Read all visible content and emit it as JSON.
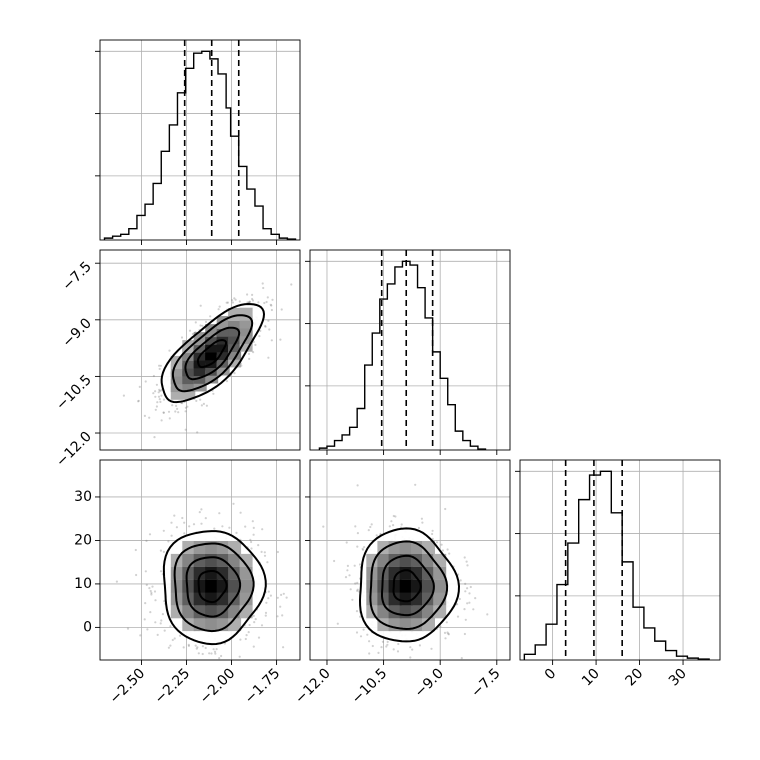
{
  "chart_data": {
    "type": "corner",
    "title": "",
    "parameters": [
      {
        "name": "",
        "ticks": [
          -2.5,
          -2.25,
          -2.0,
          -1.75
        ],
        "tick_labels": [
          "−2.50",
          "−2.25",
          "−2.00",
          "−1.75"
        ],
        "range": [
          -2.73,
          -1.62
        ],
        "quantiles": [
          -2.26,
          -2.11,
          -1.96
        ],
        "mean": -2.11,
        "std": 0.14
      },
      {
        "name": "",
        "ticks": [
          -12.0,
          -10.5,
          -9.0,
          -7.5
        ],
        "tick_labels": [
          "−12.0",
          "−10.5",
          "−9.0",
          "−7.5"
        ],
        "range": [
          -12.45,
          -7.15
        ],
        "quantiles": [
          -10.55,
          -9.9,
          -9.2
        ],
        "mean": -9.9,
        "std": 0.65
      },
      {
        "name": "",
        "ticks": [
          0,
          10,
          20,
          30
        ],
        "tick_labels": [
          "0",
          "10",
          "20",
          "30"
        ],
        "range": [
          -7.5,
          38.5
        ],
        "quantiles": [
          3.0,
          9.5,
          16.0
        ],
        "mean": 9.5,
        "std": 6.5
      }
    ],
    "histograms": [
      {
        "param": 0,
        "bin_edges": [
          -2.705,
          -2.66,
          -2.615,
          -2.57,
          -2.525,
          -2.48,
          -2.435,
          -2.39,
          -2.345,
          -2.3,
          -2.255,
          -2.21,
          -2.165,
          -2.12,
          -2.075,
          -2.03,
          -2.005,
          -1.96,
          -1.915,
          -1.87,
          -1.825,
          -1.78,
          -1.735,
          -1.69,
          -1.645
        ],
        "counts": [
          0.01,
          0.02,
          0.03,
          0.06,
          0.13,
          0.19,
          0.3,
          0.47,
          0.61,
          0.78,
          0.91,
          0.99,
          1.0,
          0.96,
          0.88,
          0.7,
          0.55,
          0.39,
          0.27,
          0.18,
          0.06,
          0.03,
          0.01,
          0.005
        ]
      },
      {
        "param": 1,
        "bin_edges": [
          -12.2,
          -12.0,
          -11.8,
          -11.6,
          -11.4,
          -11.2,
          -11.0,
          -10.8,
          -10.6,
          -10.4,
          -10.2,
          -10.0,
          -9.8,
          -9.6,
          -9.4,
          -9.2,
          -9.0,
          -8.8,
          -8.6,
          -8.4,
          -8.2,
          -8.0,
          -7.8
        ],
        "counts": [
          0.01,
          0.02,
          0.05,
          0.08,
          0.12,
          0.22,
          0.45,
          0.62,
          0.8,
          0.88,
          0.97,
          1.0,
          0.98,
          0.86,
          0.7,
          0.52,
          0.38,
          0.24,
          0.1,
          0.05,
          0.02,
          0.005
        ]
      },
      {
        "param": 2,
        "bin_edges": [
          -6.5,
          -4.0,
          -1.5,
          1.0,
          3.5,
          6.0,
          8.5,
          11.0,
          13.5,
          16.0,
          18.5,
          21.0,
          23.5,
          26.0,
          28.5,
          31.0,
          33.5,
          36.0
        ],
        "counts": [
          0.03,
          0.08,
          0.19,
          0.4,
          0.62,
          0.85,
          0.98,
          1.0,
          0.78,
          0.52,
          0.28,
          0.17,
          0.1,
          0.05,
          0.02,
          0.01,
          0.005
        ]
      }
    ],
    "pairs": [
      {
        "x_param": 0,
        "y_param": 1,
        "correlation": 0.72
      },
      {
        "x_param": 0,
        "y_param": 2,
        "correlation": 0.0
      },
      {
        "x_param": 1,
        "y_param": 2,
        "correlation": 0.0
      }
    ],
    "contour_levels": [
      0.39,
      0.86,
      0.99
    ],
    "grid": true,
    "colors": {
      "line": "#000000",
      "grid": "#b0b0b0",
      "points": "#7a7a7a"
    }
  }
}
